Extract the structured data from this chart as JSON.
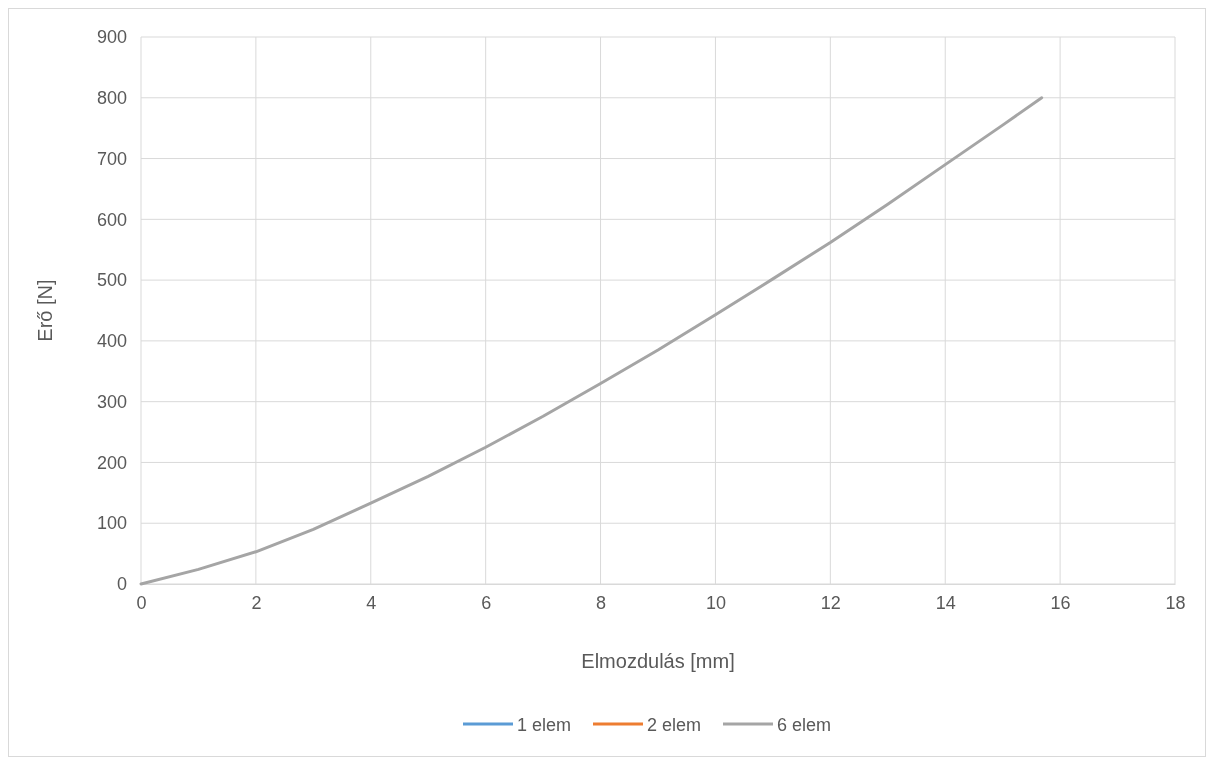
{
  "chart_data": {
    "type": "line",
    "xlabel": "Elmozdulás [mm]",
    "ylabel": "Erő [N]",
    "xlim": [
      0,
      18
    ],
    "xticks": [
      0,
      2,
      4,
      6,
      8,
      10,
      12,
      14,
      16,
      18
    ],
    "ylim": [
      0,
      900
    ],
    "yticks": [
      0,
      100,
      200,
      300,
      400,
      500,
      600,
      700,
      800,
      900
    ],
    "grid": true,
    "legend": "bottom",
    "marker": "none",
    "line_style": "solid",
    "series": [
      {
        "name": "1 elem",
        "color": "#5b9bd5",
        "values": [
          null
        ]
      },
      {
        "name": "2 elem",
        "color": "#ed7d31",
        "values": [
          null
        ]
      },
      {
        "name": "6 elem",
        "color": "#a5a5a5",
        "x": [
          0,
          1,
          2,
          3,
          4,
          5,
          6,
          7,
          8,
          9,
          10,
          11,
          12,
          13,
          14,
          15,
          15.68
        ],
        "values": [
          0,
          24,
          53,
          90,
          133,
          177,
          225,
          276,
          330,
          385,
          443,
          502,
          562,
          625,
          690,
          755,
          800
        ]
      }
    ]
  }
}
